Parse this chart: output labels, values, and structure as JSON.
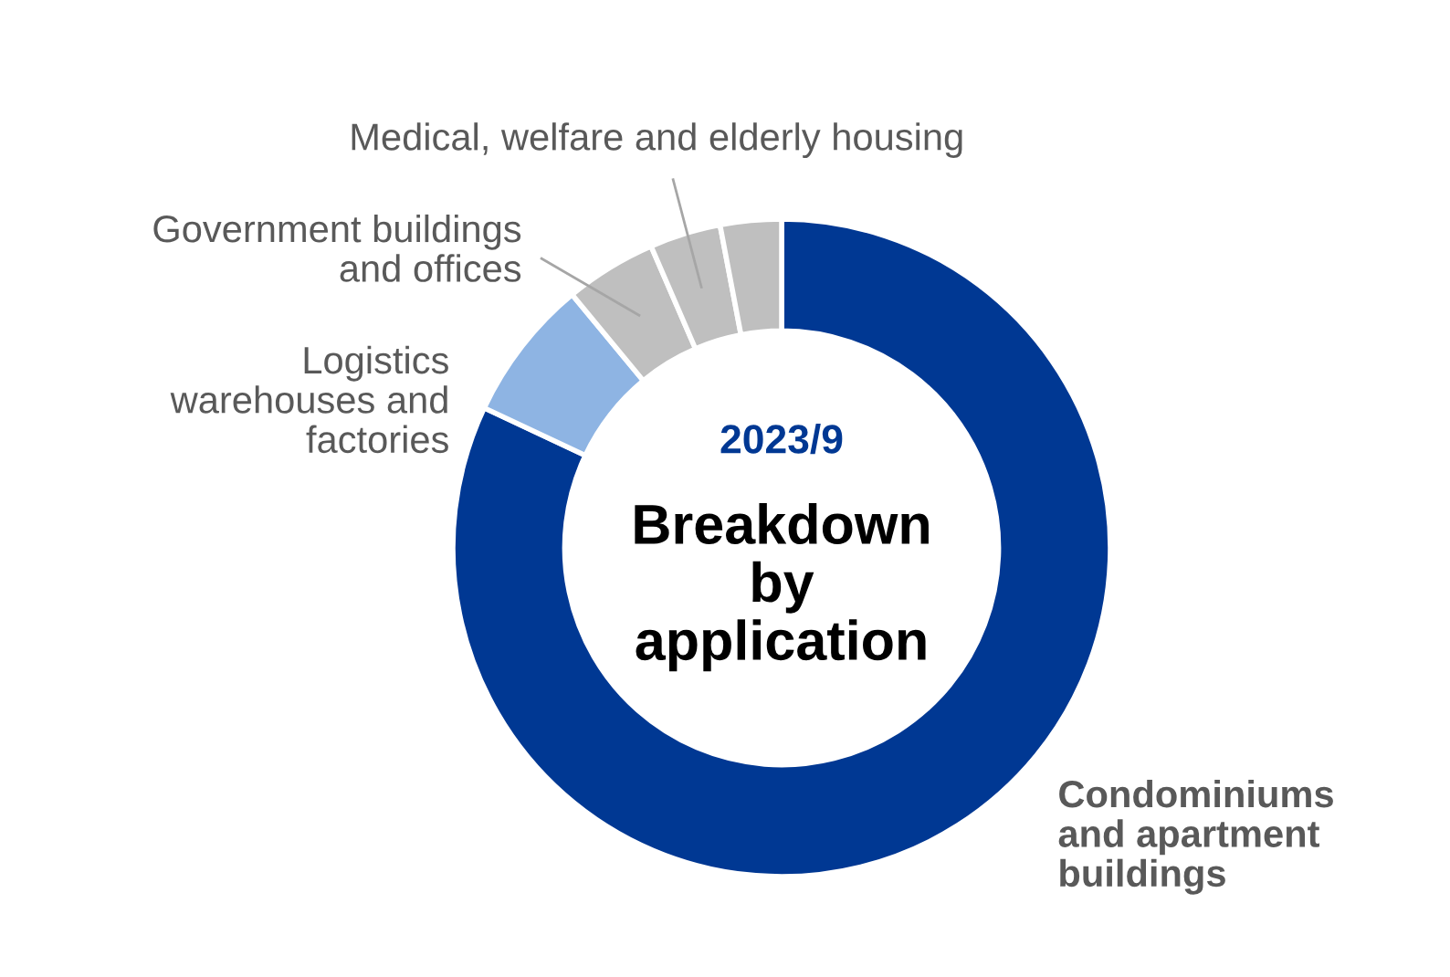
{
  "chart_data": {
    "type": "donut",
    "subtitle": "2023/9",
    "title": "Breakdown\nby\napplication",
    "categories": [
      "Condominiums\nand apartment\nbuildings",
      "Logistics\nwarehouses and\nfactories",
      "Government buildings\nand offices",
      "Medical, welfare and elderly housing",
      null
    ],
    "values": [
      82,
      7,
      4.5,
      3.5,
      3
    ],
    "colors": [
      "#003893",
      "#8eb4e3",
      "#bfbfbf",
      "#bfbfbf",
      "#bfbfbf"
    ],
    "legend": false
  }
}
